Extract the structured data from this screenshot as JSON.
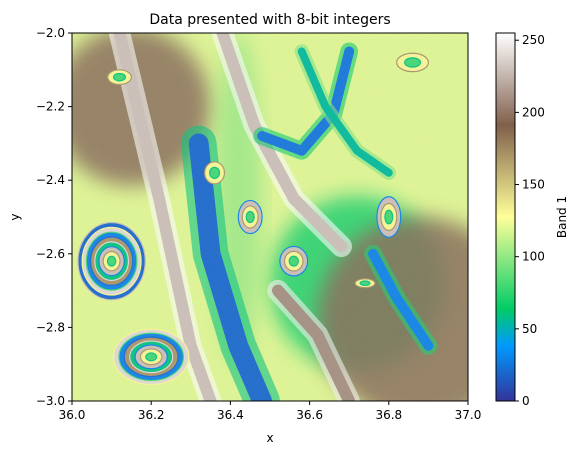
{
  "chart_data": {
    "type": "heatmap",
    "title": "Data presented with 8-bit integers",
    "xlabel": "x",
    "ylabel": "y",
    "xlim": [
      36.0,
      37.0
    ],
    "ylim": [
      -3.0,
      -2.0
    ],
    "x_ticks": [
      36.0,
      36.2,
      36.4,
      36.6,
      36.8,
      37.0
    ],
    "x_tick_labels": [
      "36.0",
      "36.2",
      "36.4",
      "36.6",
      "36.8",
      "37.0"
    ],
    "y_ticks": [
      -2.0,
      -2.2,
      -2.4,
      -2.6,
      -2.8,
      -3.0
    ],
    "y_tick_labels": [
      "−2.0",
      "−2.2",
      "−2.4",
      "−2.6",
      "−2.8",
      "−3.0"
    ],
    "colorbar": {
      "label": "Band 1",
      "range": [
        0,
        255
      ],
      "ticks": [
        0,
        50,
        100,
        150,
        200,
        250
      ],
      "tick_labels": [
        "0",
        "50",
        "100",
        "150",
        "200",
        "250"
      ],
      "colormap": "terrain",
      "colormap_stops": [
        {
          "v": 0.0,
          "color": "#333399"
        },
        {
          "v": 0.15,
          "color": "#0099ff"
        },
        {
          "v": 0.25,
          "color": "#00cc66"
        },
        {
          "v": 0.5,
          "color": "#ffff99"
        },
        {
          "v": 0.75,
          "color": "#80604c"
        },
        {
          "v": 1.0,
          "color": "#ffffff"
        }
      ]
    },
    "regions": [
      {
        "kind": "base",
        "value": 120
      },
      {
        "kind": "gradient",
        "cx": 36.72,
        "cy": -2.68,
        "r": 0.22,
        "value": 70
      },
      {
        "kind": "gradient",
        "cx": 36.88,
        "cy": -2.78,
        "r": 0.26,
        "value": 195
      },
      {
        "kind": "gradient",
        "cx": 36.15,
        "cy": -2.2,
        "r": 0.2,
        "value": 195
      },
      {
        "kind": "ellipse",
        "cx": 36.42,
        "cy": -2.45,
        "rx": 0.06,
        "ry": 0.45,
        "value": 95,
        "opacity": 0.6
      },
      {
        "kind": "stripe",
        "path": [
          [
            36.12,
            -2.0
          ],
          [
            36.22,
            -2.45
          ],
          [
            36.3,
            -2.85
          ],
          [
            36.35,
            -3.0
          ]
        ],
        "width": 0.03,
        "value": 230
      },
      {
        "kind": "stripe",
        "path": [
          [
            36.32,
            -2.3
          ],
          [
            36.35,
            -2.6
          ],
          [
            36.42,
            -2.85
          ],
          [
            36.48,
            -3.0
          ]
        ],
        "width": 0.05,
        "value": 20
      },
      {
        "kind": "stripe",
        "path": [
          [
            36.38,
            -2.0
          ],
          [
            36.46,
            -2.25
          ],
          [
            36.56,
            -2.45
          ],
          [
            36.68,
            -2.58
          ]
        ],
        "width": 0.03,
        "value": 230
      },
      {
        "kind": "stripe",
        "path": [
          [
            36.48,
            -2.28
          ],
          [
            36.58,
            -2.32
          ],
          [
            36.66,
            -2.22
          ],
          [
            36.7,
            -2.05
          ]
        ],
        "width": 0.025,
        "value": 25
      },
      {
        "kind": "stripe",
        "path": [
          [
            36.52,
            -2.7
          ],
          [
            36.62,
            -2.82
          ],
          [
            36.7,
            -3.0
          ]
        ],
        "width": 0.03,
        "value": 210
      },
      {
        "kind": "stripe",
        "path": [
          [
            36.76,
            -2.6
          ],
          [
            36.82,
            -2.72
          ],
          [
            36.9,
            -2.85
          ]
        ],
        "width": 0.025,
        "value": 30
      },
      {
        "kind": "stripe",
        "path": [
          [
            36.58,
            -2.05
          ],
          [
            36.64,
            -2.2
          ],
          [
            36.72,
            -2.32
          ],
          [
            36.8,
            -2.38
          ]
        ],
        "width": 0.02,
        "value": 55
      },
      {
        "kind": "rings",
        "cx": 36.1,
        "cy": -2.62,
        "rx": 0.085,
        "ry": 0.105,
        "n": 8
      },
      {
        "kind": "rings",
        "cx": 36.2,
        "cy": -2.88,
        "rx": 0.095,
        "ry": 0.075,
        "n": 7
      },
      {
        "kind": "rings",
        "cx": 36.8,
        "cy": -2.5,
        "rx": 0.03,
        "ry": 0.055,
        "n": 3
      },
      {
        "kind": "rings",
        "cx": 36.12,
        "cy": -2.12,
        "rx": 0.03,
        "ry": 0.02,
        "n": 2
      },
      {
        "kind": "rings",
        "cx": 36.74,
        "cy": -2.68,
        "rx": 0.025,
        "ry": 0.012,
        "n": 2
      },
      {
        "kind": "rings",
        "cx": 36.45,
        "cy": -2.5,
        "rx": 0.03,
        "ry": 0.045,
        "n": 3
      },
      {
        "kind": "rings",
        "cx": 36.56,
        "cy": -2.62,
        "rx": 0.035,
        "ry": 0.04,
        "n": 3
      },
      {
        "kind": "rings",
        "cx": 36.36,
        "cy": -2.38,
        "rx": 0.025,
        "ry": 0.03,
        "n": 2
      },
      {
        "kind": "rings",
        "cx": 36.86,
        "cy": -2.08,
        "rx": 0.04,
        "ry": 0.025,
        "n": 2
      }
    ]
  }
}
